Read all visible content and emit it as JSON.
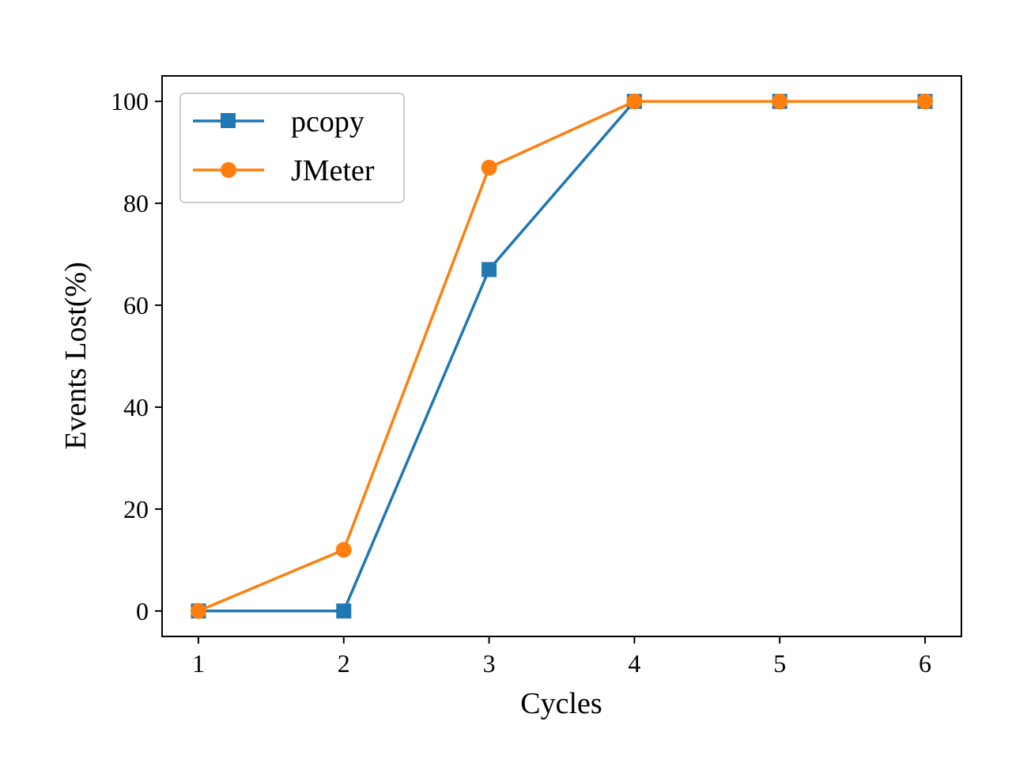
{
  "chart_data": {
    "type": "line",
    "title": "",
    "xlabel": "Cycles",
    "ylabel": "Events Lost(%)",
    "x": [
      1,
      2,
      3,
      4,
      5,
      6
    ],
    "xticks": [
      "1",
      "2",
      "3",
      "4",
      "5",
      "6"
    ],
    "yticks": [
      "0",
      "20",
      "40",
      "60",
      "80",
      "100"
    ],
    "xlim": [
      0.75,
      6.25
    ],
    "ylim": [
      -5,
      105
    ],
    "grid": false,
    "legend_position": "top-left",
    "series": [
      {
        "name": "pcopy",
        "values": [
          0,
          0,
          67,
          100,
          100,
          100
        ],
        "color": "#1f77b4",
        "marker": "square"
      },
      {
        "name": "JMeter",
        "values": [
          0,
          12,
          87,
          100,
          100,
          100
        ],
        "color": "#ff7f0e",
        "marker": "circle"
      }
    ]
  }
}
